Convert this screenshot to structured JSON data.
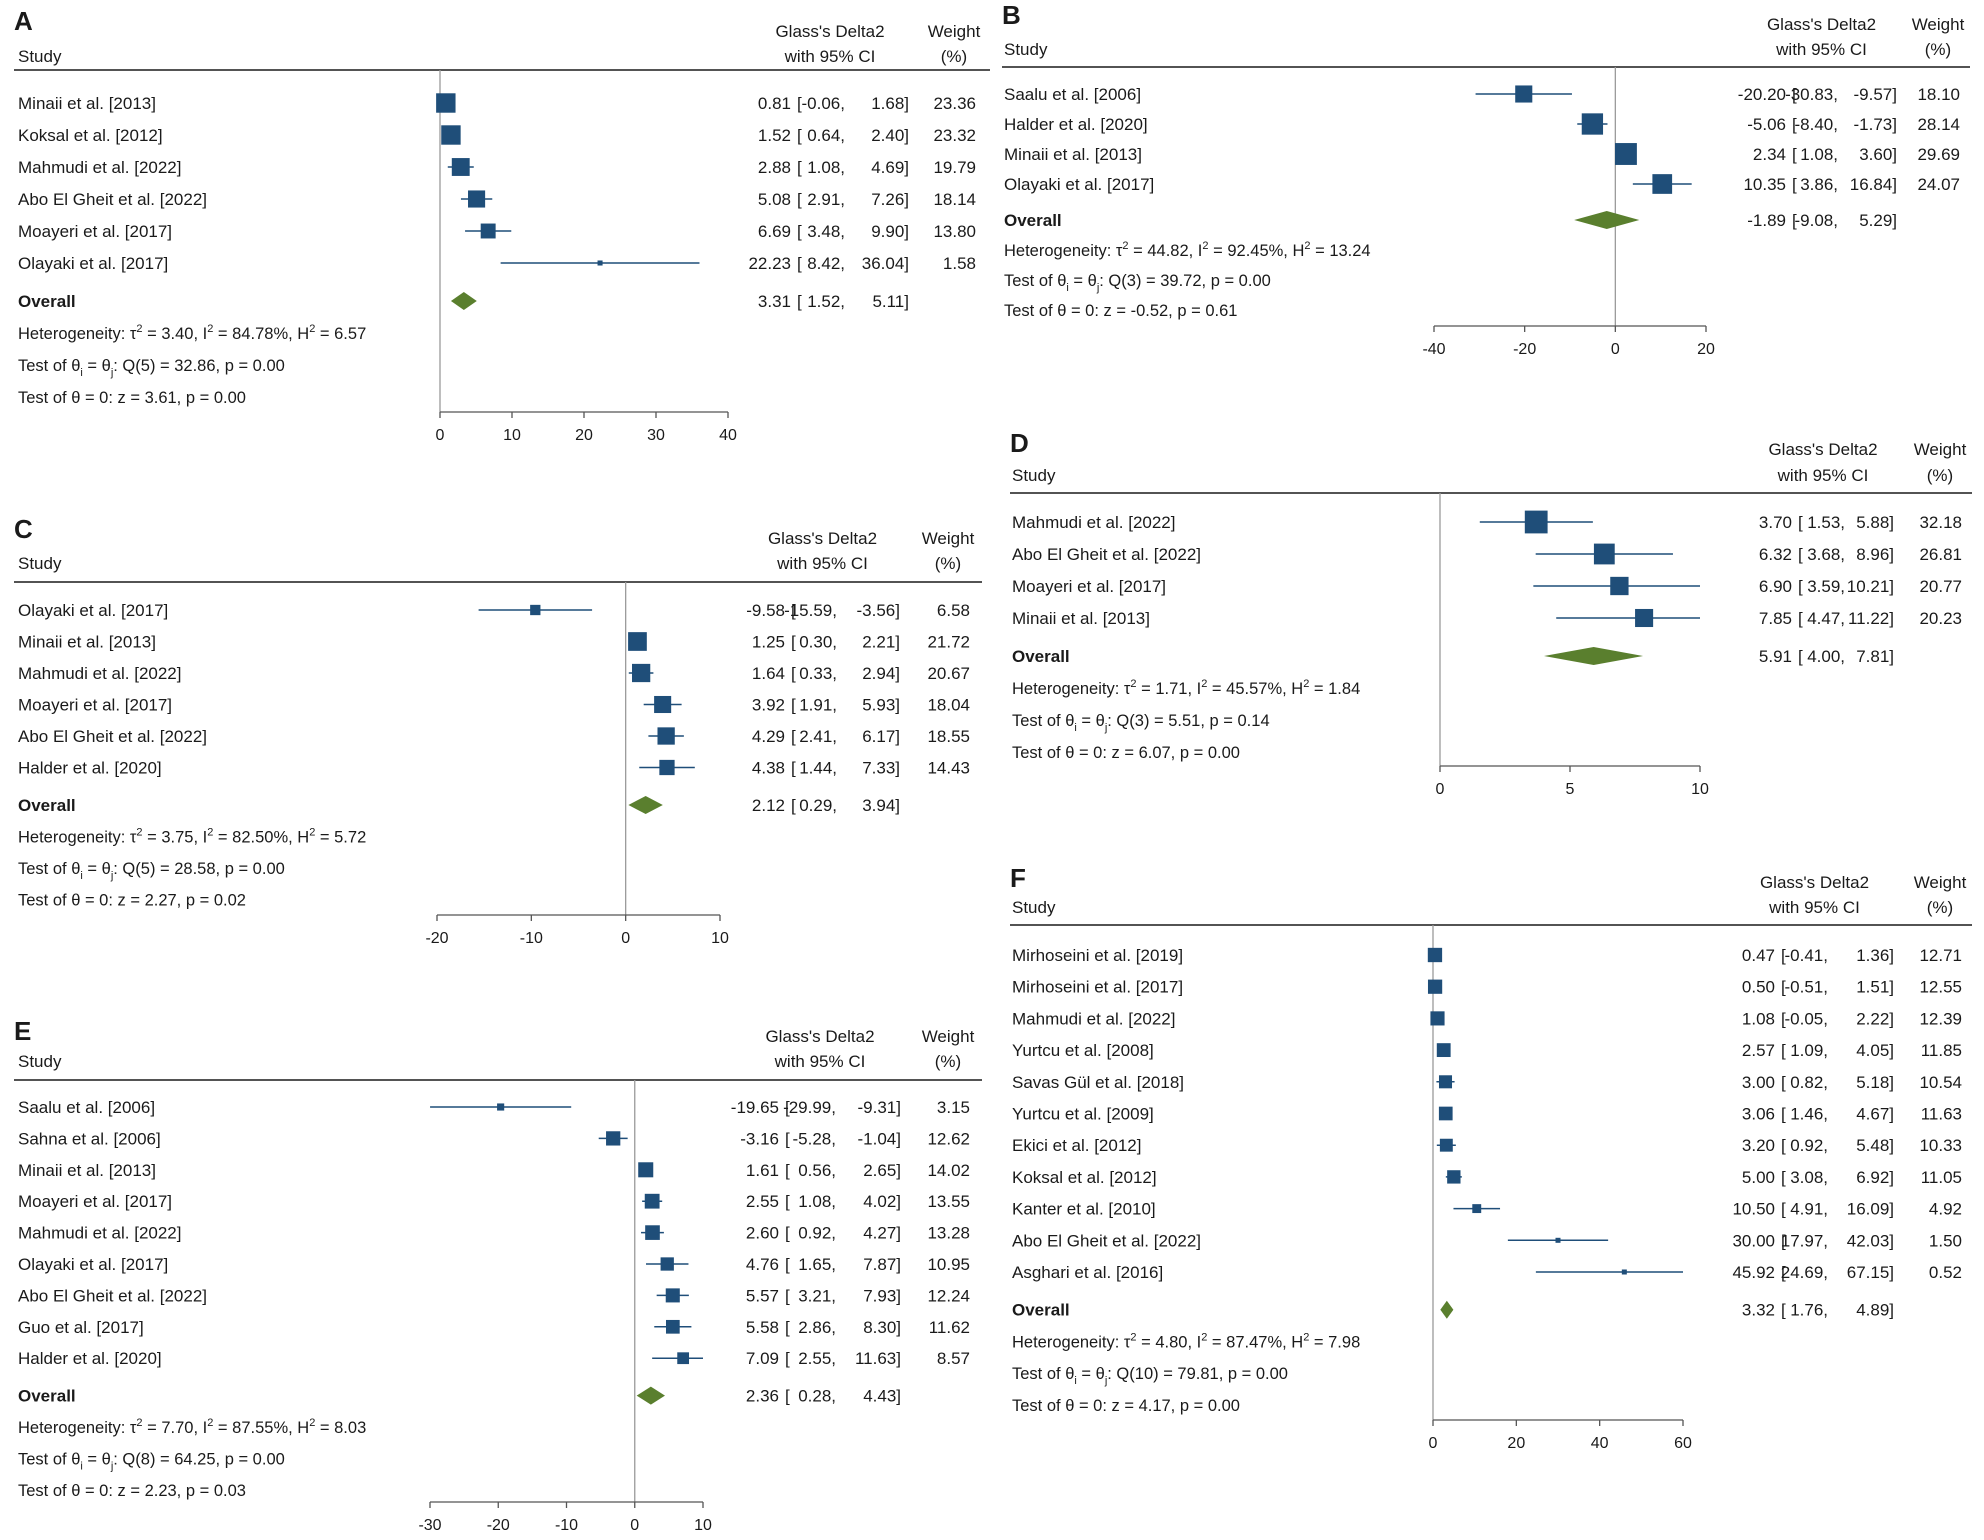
{
  "colors": {
    "marker": "#1f4e79",
    "diamond": "#5a7f2e",
    "line": "#1a1a1a",
    "axis": "#555555",
    "refline": "#9a9a9a"
  },
  "headers": {
    "study": "Study",
    "es_line1": "Glass's Delta2",
    "es_line2": "with 95% CI",
    "w_line1": "Weight",
    "w_line2": "(%)"
  },
  "chart_data": [
    {
      "label": "A",
      "type": "forest",
      "xlim": [
        0,
        40
      ],
      "ticks": [
        "0",
        "10",
        "20",
        "30",
        "40"
      ],
      "studies": [
        {
          "name": "Minaii et al. [2013]",
          "es": 0.81,
          "lo": -0.06,
          "hi": 1.68,
          "w": 23.36,
          "es_t": "0.81",
          "lo_t": "-0.06,",
          "hi_t": "1.68]",
          "w_t": "23.36"
        },
        {
          "name": "Koksal et al. [2012]",
          "es": 1.52,
          "lo": 0.64,
          "hi": 2.4,
          "w": 23.32,
          "es_t": "1.52",
          "lo_t": "0.64,",
          "hi_t": "2.40]",
          "w_t": "23.32"
        },
        {
          "name": "Mahmudi et al. [2022]",
          "es": 2.88,
          "lo": 1.08,
          "hi": 4.69,
          "w": 19.79,
          "es_t": "2.88",
          "lo_t": "1.08,",
          "hi_t": "4.69]",
          "w_t": "19.79"
        },
        {
          "name": "Abo El Gheit et al. [2022]",
          "es": 5.08,
          "lo": 2.91,
          "hi": 7.26,
          "w": 18.14,
          "es_t": "5.08",
          "lo_t": "2.91,",
          "hi_t": "7.26]",
          "w_t": "18.14"
        },
        {
          "name": "Moayeri et al. [2017]",
          "es": 6.69,
          "lo": 3.48,
          "hi": 9.9,
          "w": 13.8,
          "es_t": "6.69",
          "lo_t": "3.48,",
          "hi_t": "9.90]",
          "w_t": "13.80"
        },
        {
          "name": "Olayaki et al. [2017]",
          "es": 22.23,
          "lo": 8.42,
          "hi": 36.04,
          "w": 1.58,
          "es_t": "22.23",
          "lo_t": "8.42,",
          "hi_t": "36.04]",
          "w_t": "1.58"
        }
      ],
      "overall": {
        "label": "Overall",
        "es": 3.31,
        "lo": 1.52,
        "hi": 5.11,
        "es_t": "3.31",
        "lo_t": "1.52,",
        "hi_t": "5.11]"
      },
      "stats": [
        {
          "pre": "Heterogeneity: τ",
          "sup1": "2",
          "mid": " = 3.40, I",
          "sup2": "2",
          "mid2": " = 84.78%, H",
          "sup3": "2",
          "post": " = 6.57"
        },
        {
          "pre": "Test of θ",
          "sub1": "i",
          "mid": " = θ",
          "sub2": "j",
          "post": ": Q(5) = 32.86, p = 0.00"
        },
        {
          "pre": "Test of θ = 0: z = 3.61, p = 0.00"
        }
      ]
    },
    {
      "label": "B",
      "type": "forest",
      "xlim": [
        -40,
        20
      ],
      "ticks": [
        "-40",
        "-20",
        "0",
        "20"
      ],
      "studies": [
        {
          "name": "Saalu et al. [2006]",
          "es": -20.2,
          "lo": -30.83,
          "hi": -9.57,
          "w": 18.1,
          "es_t": "-20.20",
          "lo_t": "-30.83,",
          "hi_t": "-9.57]",
          "w_t": "18.10"
        },
        {
          "name": "Halder et al. [2020]",
          "es": -5.06,
          "lo": -8.4,
          "hi": -1.73,
          "w": 28.14,
          "es_t": "-5.06",
          "lo_t": "-8.40,",
          "hi_t": "-1.73]",
          "w_t": "28.14"
        },
        {
          "name": "Minaii et al. [2013]",
          "es": 2.34,
          "lo": 1.08,
          "hi": 3.6,
          "w": 29.69,
          "es_t": "2.34",
          "lo_t": "1.08,",
          "hi_t": "3.60]",
          "w_t": "29.69"
        },
        {
          "name": "Olayaki et al. [2017]",
          "es": 10.35,
          "lo": 3.86,
          "hi": 16.84,
          "w": 24.07,
          "es_t": "10.35",
          "lo_t": "3.86,",
          "hi_t": "16.84]",
          "w_t": "24.07"
        }
      ],
      "overall": {
        "label": "Overall",
        "es": -1.89,
        "lo": -9.08,
        "hi": 5.29,
        "es_t": "-1.89",
        "lo_t": "-9.08,",
        "hi_t": "5.29]"
      },
      "stats": [
        {
          "pre": "Heterogeneity: τ",
          "sup1": "2",
          "mid": " = 44.82, I",
          "sup2": "2",
          "mid2": " = 92.45%, H",
          "sup3": "2",
          "post": " = 13.24"
        },
        {
          "pre": "Test of θ",
          "sub1": "i",
          "mid": " = θ",
          "sub2": "j",
          "post": ": Q(3) = 39.72, p = 0.00"
        },
        {
          "pre": "Test of θ = 0: z = -0.52, p = 0.61"
        }
      ]
    },
    {
      "label": "C",
      "type": "forest",
      "xlim": [
        -20,
        10
      ],
      "ticks": [
        "-20",
        "-10",
        "0",
        "10"
      ],
      "studies": [
        {
          "name": "Olayaki et al. [2017]",
          "es": -9.58,
          "lo": -15.59,
          "hi": -3.56,
          "w": 6.58,
          "es_t": "-9.58",
          "lo_t": "-15.59,",
          "hi_t": "-3.56]",
          "w_t": "6.58"
        },
        {
          "name": "Minaii et al. [2013]",
          "es": 1.25,
          "lo": 0.3,
          "hi": 2.21,
          "w": 21.72,
          "es_t": "1.25",
          "lo_t": "0.30,",
          "hi_t": "2.21]",
          "w_t": "21.72"
        },
        {
          "name": "Mahmudi et al. [2022]",
          "es": 1.64,
          "lo": 0.33,
          "hi": 2.94,
          "w": 20.67,
          "es_t": "1.64",
          "lo_t": "0.33,",
          "hi_t": "2.94]",
          "w_t": "20.67"
        },
        {
          "name": "Moayeri et al. [2017]",
          "es": 3.92,
          "lo": 1.91,
          "hi": 5.93,
          "w": 18.04,
          "es_t": "3.92",
          "lo_t": "1.91,",
          "hi_t": "5.93]",
          "w_t": "18.04"
        },
        {
          "name": "Abo El Gheit et al. [2022]",
          "es": 4.29,
          "lo": 2.41,
          "hi": 6.17,
          "w": 18.55,
          "es_t": "4.29",
          "lo_t": "2.41,",
          "hi_t": "6.17]",
          "w_t": "18.55"
        },
        {
          "name": "Halder et al. [2020]",
          "es": 4.38,
          "lo": 1.44,
          "hi": 7.33,
          "w": 14.43,
          "es_t": "4.38",
          "lo_t": "1.44,",
          "hi_t": "7.33]",
          "w_t": "14.43"
        }
      ],
      "overall": {
        "label": "Overall",
        "es": 2.12,
        "lo": 0.29,
        "hi": 3.94,
        "es_t": "2.12",
        "lo_t": "0.29,",
        "hi_t": "3.94]"
      },
      "stats": [
        {
          "pre": "Heterogeneity: τ",
          "sup1": "2",
          "mid": " = 3.75, I",
          "sup2": "2",
          "mid2": " = 82.50%, H",
          "sup3": "2",
          "post": " = 5.72"
        },
        {
          "pre": "Test of θ",
          "sub1": "i",
          "mid": " = θ",
          "sub2": "j",
          "post": ": Q(5) = 28.58, p = 0.00"
        },
        {
          "pre": "Test of θ = 0: z = 2.27, p = 0.02"
        }
      ]
    },
    {
      "label": "D",
      "type": "forest",
      "xlim": [
        0,
        10
      ],
      "ticks": [
        "0",
        "5",
        "10"
      ],
      "studies": [
        {
          "name": "Mahmudi et al. [2022]",
          "es": 3.7,
          "lo": 1.53,
          "hi": 5.88,
          "w": 32.18,
          "es_t": "3.70",
          "lo_t": "1.53,",
          "hi_t": "5.88]",
          "w_t": "32.18"
        },
        {
          "name": "Abo El Gheit et al. [2022]",
          "es": 6.32,
          "lo": 3.68,
          "hi": 8.96,
          "w": 26.81,
          "es_t": "6.32",
          "lo_t": "3.68,",
          "hi_t": "8.96]",
          "w_t": "26.81"
        },
        {
          "name": "Moayeri et al. [2017]",
          "es": 6.9,
          "lo": 3.59,
          "hi": 10.21,
          "w": 20.77,
          "es_t": "6.90",
          "lo_t": "3.59,",
          "hi_t": "10.21]",
          "w_t": "20.77"
        },
        {
          "name": "Minaii et al. [2013]",
          "es": 7.85,
          "lo": 4.47,
          "hi": 11.22,
          "w": 20.23,
          "es_t": "7.85",
          "lo_t": "4.47,",
          "hi_t": "11.22]",
          "w_t": "20.23"
        }
      ],
      "overall": {
        "label": "Overall",
        "es": 5.91,
        "lo": 4.0,
        "hi": 7.81,
        "es_t": "5.91",
        "lo_t": "4.00,",
        "hi_t": "7.81]"
      },
      "stats": [
        {
          "pre": "Heterogeneity: τ",
          "sup1": "2",
          "mid": " = 1.71, I",
          "sup2": "2",
          "mid2": " = 45.57%, H",
          "sup3": "2",
          "post": " = 1.84"
        },
        {
          "pre": "Test of θ",
          "sub1": "i",
          "mid": " = θ",
          "sub2": "j",
          "post": ": Q(3) = 5.51, p = 0.14"
        },
        {
          "pre": "Test of θ = 0: z = 6.07, p = 0.00"
        }
      ]
    },
    {
      "label": "E",
      "type": "forest",
      "xlim": [
        -30,
        10
      ],
      "ticks": [
        "-30",
        "-20",
        "-10",
        "0",
        "10"
      ],
      "studies": [
        {
          "name": "Saalu et al. [2006]",
          "es": -19.65,
          "lo": -29.99,
          "hi": -9.31,
          "w": 3.15,
          "es_t": "-19.65",
          "lo_t": "-29.99,",
          "hi_t": "-9.31]",
          "w_t": "3.15"
        },
        {
          "name": "Sahna et al. [2006]",
          "es": -3.16,
          "lo": -5.28,
          "hi": -1.04,
          "w": 12.62,
          "es_t": "-3.16",
          "lo_t": "-5.28,",
          "hi_t": "-1.04]",
          "w_t": "12.62"
        },
        {
          "name": "Minaii et al. [2013]",
          "es": 1.61,
          "lo": 0.56,
          "hi": 2.65,
          "w": 14.02,
          "es_t": "1.61",
          "lo_t": "0.56,",
          "hi_t": "2.65]",
          "w_t": "14.02"
        },
        {
          "name": "Moayeri et al. [2017]",
          "es": 2.55,
          "lo": 1.08,
          "hi": 4.02,
          "w": 13.55,
          "es_t": "2.55",
          "lo_t": "1.08,",
          "hi_t": "4.02]",
          "w_t": "13.55"
        },
        {
          "name": "Mahmudi et al. [2022]",
          "es": 2.6,
          "lo": 0.92,
          "hi": 4.27,
          "w": 13.28,
          "es_t": "2.60",
          "lo_t": "0.92,",
          "hi_t": "4.27]",
          "w_t": "13.28"
        },
        {
          "name": "Olayaki et al. [2017]",
          "es": 4.76,
          "lo": 1.65,
          "hi": 7.87,
          "w": 10.95,
          "es_t": "4.76",
          "lo_t": "1.65,",
          "hi_t": "7.87]",
          "w_t": "10.95"
        },
        {
          "name": "Abo El Gheit et al. [2022]",
          "es": 5.57,
          "lo": 3.21,
          "hi": 7.93,
          "w": 12.24,
          "es_t": "5.57",
          "lo_t": "3.21,",
          "hi_t": "7.93]",
          "w_t": "12.24"
        },
        {
          "name": "Guo et al. [2017]",
          "es": 5.58,
          "lo": 2.86,
          "hi": 8.3,
          "w": 11.62,
          "es_t": "5.58",
          "lo_t": "2.86,",
          "hi_t": "8.30]",
          "w_t": "11.62"
        },
        {
          "name": "Halder et al. [2020]",
          "es": 7.09,
          "lo": 2.55,
          "hi": 11.63,
          "w": 8.57,
          "es_t": "7.09",
          "lo_t": "2.55,",
          "hi_t": "11.63]",
          "w_t": "8.57"
        }
      ],
      "overall": {
        "label": "Overall",
        "es": 2.36,
        "lo": 0.28,
        "hi": 4.43,
        "es_t": "2.36",
        "lo_t": "0.28,",
        "hi_t": "4.43]"
      },
      "stats": [
        {
          "pre": "Heterogeneity: τ",
          "sup1": "2",
          "mid": " = 7.70, I",
          "sup2": "2",
          "mid2": " = 87.55%, H",
          "sup3": "2",
          "post": " = 8.03"
        },
        {
          "pre": "Test of θ",
          "sub1": "i",
          "mid": " = θ",
          "sub2": "j",
          "post": ": Q(8) = 64.25, p = 0.00"
        },
        {
          "pre": "Test of θ = 0: z = 2.23, p = 0.03"
        }
      ]
    },
    {
      "label": "F",
      "type": "forest",
      "xlim": [
        0,
        60
      ],
      "ticks": [
        "0",
        "20",
        "40",
        "60"
      ],
      "studies": [
        {
          "name": "Mirhoseini et al. [2019]",
          "es": 0.47,
          "lo": -0.41,
          "hi": 1.36,
          "w": 12.71,
          "es_t": "0.47",
          "lo_t": "-0.41,",
          "hi_t": "1.36]",
          "w_t": "12.71"
        },
        {
          "name": "Mirhoseini et al. [2017]",
          "es": 0.5,
          "lo": -0.51,
          "hi": 1.51,
          "w": 12.55,
          "es_t": "0.50",
          "lo_t": "-0.51,",
          "hi_t": "1.51]",
          "w_t": "12.55"
        },
        {
          "name": "Mahmudi et al. [2022]",
          "es": 1.08,
          "lo": -0.05,
          "hi": 2.22,
          "w": 12.39,
          "es_t": "1.08",
          "lo_t": "-0.05,",
          "hi_t": "2.22]",
          "w_t": "12.39"
        },
        {
          "name": "Yurtcu et al. [2008]",
          "es": 2.57,
          "lo": 1.09,
          "hi": 4.05,
          "w": 11.85,
          "es_t": "2.57",
          "lo_t": "1.09,",
          "hi_t": "4.05]",
          "w_t": "11.85"
        },
        {
          "name": "Savas Gül et al. [2018]",
          "es": 3.0,
          "lo": 0.82,
          "hi": 5.18,
          "w": 10.54,
          "es_t": "3.00",
          "lo_t": "0.82,",
          "hi_t": "5.18]",
          "w_t": "10.54"
        },
        {
          "name": "Yurtcu et al. [2009]",
          "es": 3.06,
          "lo": 1.46,
          "hi": 4.67,
          "w": 11.63,
          "es_t": "3.06",
          "lo_t": "1.46,",
          "hi_t": "4.67]",
          "w_t": "11.63"
        },
        {
          "name": "Ekici et al. [2012]",
          "es": 3.2,
          "lo": 0.92,
          "hi": 5.48,
          "w": 10.33,
          "es_t": "3.20",
          "lo_t": "0.92,",
          "hi_t": "5.48]",
          "w_t": "10.33"
        },
        {
          "name": "Koksal et al. [2012]",
          "es": 5.0,
          "lo": 3.08,
          "hi": 6.92,
          "w": 11.05,
          "es_t": "5.00",
          "lo_t": "3.08,",
          "hi_t": "6.92]",
          "w_t": "11.05"
        },
        {
          "name": "Kanter et al. [2010]",
          "es": 10.5,
          "lo": 4.91,
          "hi": 16.09,
          "w": 4.92,
          "es_t": "10.50",
          "lo_t": "4.91,",
          "hi_t": "16.09]",
          "w_t": "4.92"
        },
        {
          "name": "Abo El Gheit et al. [2022]",
          "es": 30.0,
          "lo": 17.97,
          "hi": 42.03,
          "w": 1.5,
          "es_t": "30.00",
          "lo_t": "17.97,",
          "hi_t": "42.03]",
          "w_t": "1.50"
        },
        {
          "name": "Asghari et al. [2016]",
          "es": 45.92,
          "lo": 24.69,
          "hi": 67.15,
          "w": 0.52,
          "es_t": "45.92",
          "lo_t": "24.69,",
          "hi_t": "67.15]",
          "w_t": "0.52"
        }
      ],
      "overall": {
        "label": "Overall",
        "es": 3.32,
        "lo": 1.76,
        "hi": 4.89,
        "es_t": "3.32",
        "lo_t": "1.76,",
        "hi_t": "4.89]"
      },
      "stats": [
        {
          "pre": "Heterogeneity: τ",
          "sup1": "2",
          "mid": " = 4.80, I",
          "sup2": "2",
          "mid2": " = 87.47%, H",
          "sup3": "2",
          "post": " = 7.98"
        },
        {
          "pre": "Test of θ",
          "sub1": "i",
          "mid": " = θ",
          "sub2": "j",
          "post": ": Q(10) = 79.81, p = 0.00"
        },
        {
          "pre": "Test of θ = 0: z = 4.17, p = 0.00"
        }
      ]
    }
  ]
}
